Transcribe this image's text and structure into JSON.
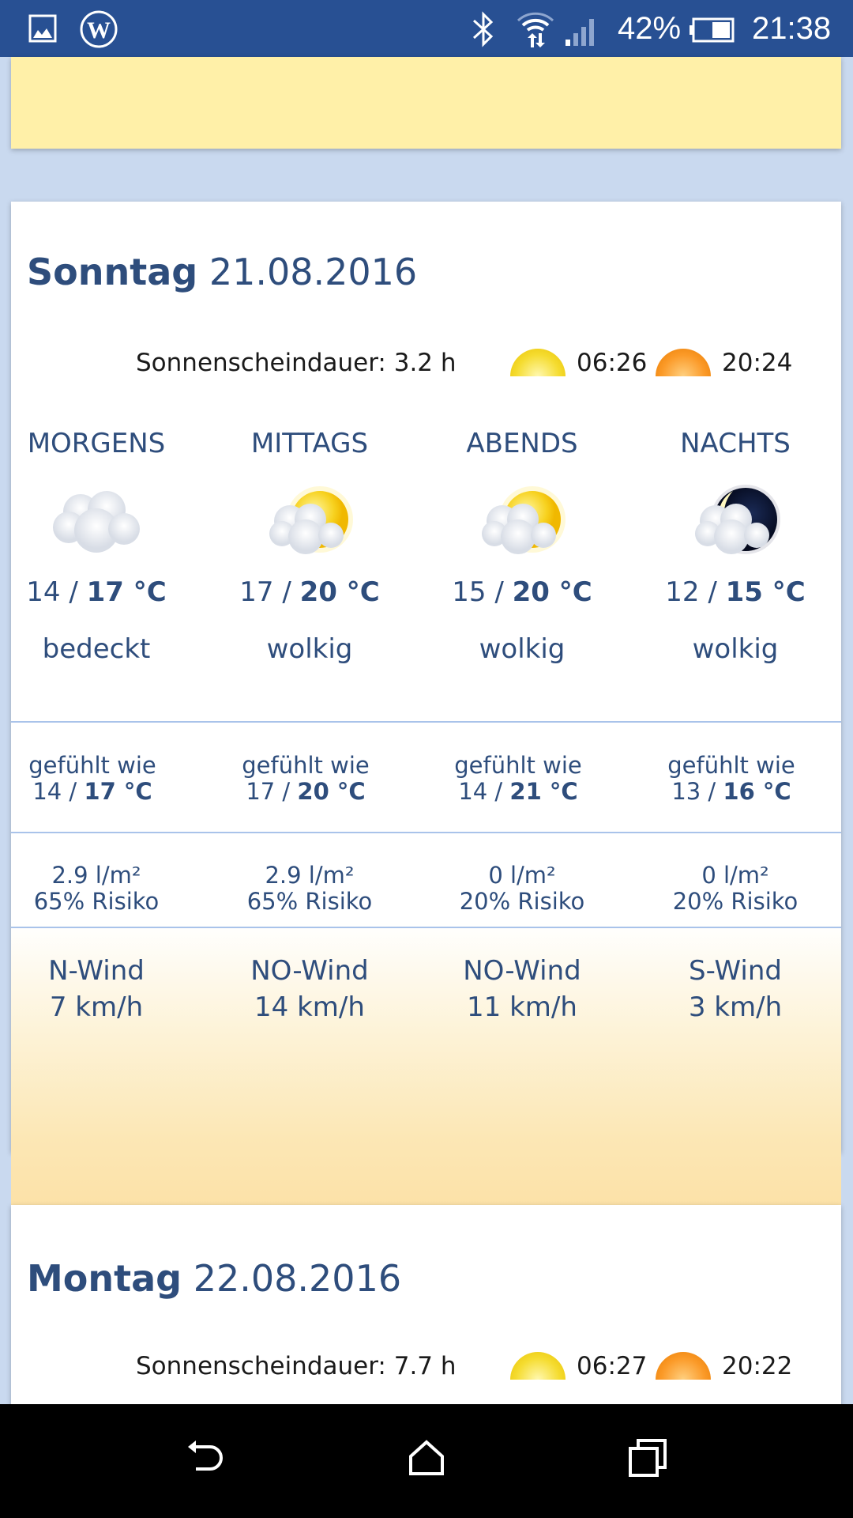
{
  "status_bar": {
    "battery": "42%",
    "time": "21:38",
    "icons": [
      "image-icon",
      "wordpress-icon",
      "bluetooth-icon",
      "wifi-icon",
      "signal-icon",
      "battery-icon"
    ]
  },
  "days": [
    {
      "weekday": "Sonntag",
      "date": "21.08.2016",
      "sunshine": "Sonnenscheindauer: 3.2 h",
      "sunrise": "06:26",
      "sunset": "20:24",
      "periods": [
        {
          "label": "MORGENS",
          "icon": "overcast-icon",
          "min": "14 /",
          "max": "17 °C",
          "desc": "bedeckt",
          "feels_label": "gefühlt wie",
          "feels_min": "14 /",
          "feels_max": "17 °C",
          "rain": "2.9 l/m²",
          "risk": "65% Risiko",
          "wind_dir": "N-Wind",
          "wind_speed": "7 km/h"
        },
        {
          "label": "MITTAGS",
          "icon": "sun-cloud-icon",
          "min": "17 /",
          "max": "20 °C",
          "desc": "wolkig",
          "feels_label": "gefühlt wie",
          "feels_min": "17 /",
          "feels_max": "20 °C",
          "rain": "2.9 l/m²",
          "risk": "65% Risiko",
          "wind_dir": "NO-Wind",
          "wind_speed": "14 km/h"
        },
        {
          "label": "ABENDS",
          "icon": "sun-cloud-icon",
          "min": "15 /",
          "max": "20 °C",
          "desc": "wolkig",
          "feels_label": "gefühlt wie",
          "feels_min": "14 /",
          "feels_max": "21 °C",
          "rain": "0 l/m²",
          "risk": "20% Risiko",
          "wind_dir": "NO-Wind",
          "wind_speed": "11 km/h"
        },
        {
          "label": "NACHTS",
          "icon": "moon-cloud-icon",
          "min": "12 /",
          "max": "15 °C",
          "desc": "wolkig",
          "feels_label": "gefühlt wie",
          "feels_min": "13 /",
          "feels_max": "16 °C",
          "rain": "0 l/m²",
          "risk": "20% Risiko",
          "wind_dir": "S-Wind",
          "wind_speed": "3 km/h"
        }
      ]
    },
    {
      "weekday": "Montag",
      "date": "22.08.2016",
      "sunshine": "Sonnenscheindauer: 7.7 h",
      "sunrise": "06:27",
      "sunset": "20:22"
    }
  ],
  "colors": {
    "status_bar": "#285093",
    "text": "#2e4d7c",
    "background": "#c9d9ef"
  }
}
